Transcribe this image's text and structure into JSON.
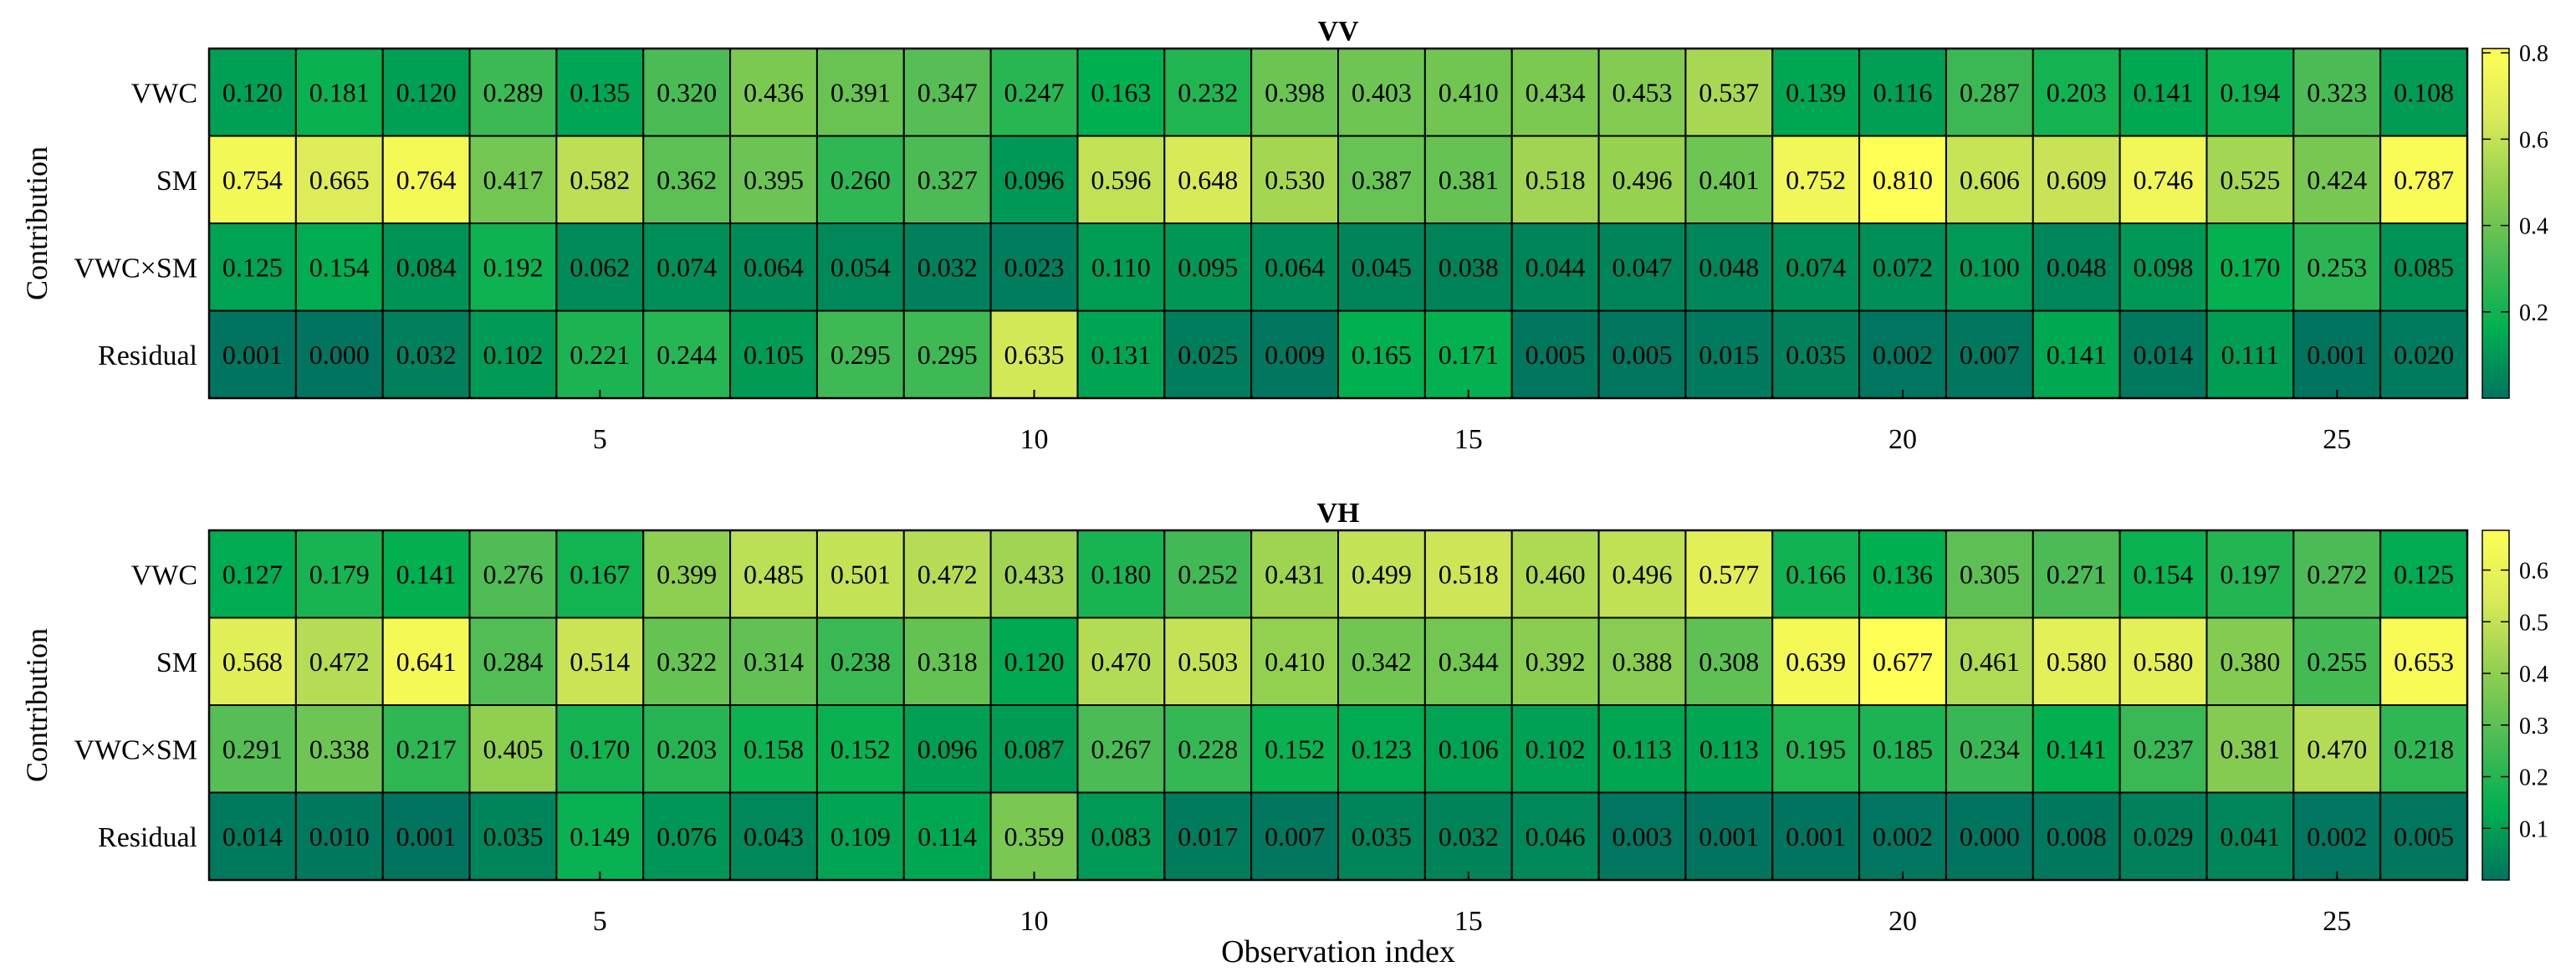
{
  "chart_data": [
    {
      "type": "heatmap",
      "title": "VV",
      "xlabel": "",
      "ylabel": "Contribution",
      "rows": [
        "VWC",
        "SM",
        "VWC×SM",
        "Residual"
      ],
      "x": [
        1,
        2,
        3,
        4,
        5,
        6,
        7,
        8,
        9,
        10,
        11,
        12,
        13,
        14,
        15,
        16,
        17,
        18,
        19,
        20,
        21,
        22,
        23,
        24,
        25,
        26
      ],
      "xticks": [
        "5",
        "10",
        "15",
        "20",
        "25"
      ],
      "values": [
        [
          "0.120",
          "0.181",
          "0.120",
          "0.289",
          "0.135",
          "0.320",
          "0.436",
          "0.391",
          "0.347",
          "0.247",
          "0.163",
          "0.232",
          "0.398",
          "0.403",
          "0.410",
          "0.434",
          "0.453",
          "0.537",
          "0.139",
          "0.116",
          "0.287",
          "0.203",
          "0.141",
          "0.194",
          "0.323",
          "0.108"
        ],
        [
          "0.754",
          "0.665",
          "0.764",
          "0.417",
          "0.582",
          "0.362",
          "0.395",
          "0.260",
          "0.327",
          "0.096",
          "0.596",
          "0.648",
          "0.530",
          "0.387",
          "0.381",
          "0.518",
          "0.496",
          "0.401",
          "0.752",
          "0.810",
          "0.606",
          "0.609",
          "0.746",
          "0.525",
          "0.424",
          "0.787"
        ],
        [
          "0.125",
          "0.154",
          "0.084",
          "0.192",
          "0.062",
          "0.074",
          "0.064",
          "0.054",
          "0.032",
          "0.023",
          "0.110",
          "0.095",
          "0.064",
          "0.045",
          "0.038",
          "0.044",
          "0.047",
          "0.048",
          "0.074",
          "0.072",
          "0.100",
          "0.048",
          "0.098",
          "0.170",
          "0.253",
          "0.085"
        ],
        [
          "0.001",
          "0.000",
          "0.032",
          "0.102",
          "0.221",
          "0.244",
          "0.105",
          "0.295",
          "0.295",
          "0.635",
          "0.131",
          "0.025",
          "0.009",
          "0.165",
          "0.171",
          "0.005",
          "0.005",
          "0.015",
          "0.035",
          "0.002",
          "0.007",
          "0.141",
          "0.014",
          "0.111",
          "0.001",
          "0.020"
        ]
      ],
      "colorbar": {
        "range": [
          0.0,
          0.81
        ],
        "ticks": [
          "0.2",
          "0.4",
          "0.6",
          "0.8"
        ]
      }
    },
    {
      "type": "heatmap",
      "title": "VH",
      "xlabel": "Observation index",
      "ylabel": "Contribution",
      "rows": [
        "VWC",
        "SM",
        "VWC×SM",
        "Residual"
      ],
      "x": [
        1,
        2,
        3,
        4,
        5,
        6,
        7,
        8,
        9,
        10,
        11,
        12,
        13,
        14,
        15,
        16,
        17,
        18,
        19,
        20,
        21,
        22,
        23,
        24,
        25,
        26
      ],
      "xticks": [
        "5",
        "10",
        "15",
        "20",
        "25"
      ],
      "values": [
        [
          "0.127",
          "0.179",
          "0.141",
          "0.276",
          "0.167",
          "0.399",
          "0.485",
          "0.501",
          "0.472",
          "0.433",
          "0.180",
          "0.252",
          "0.431",
          "0.499",
          "0.518",
          "0.460",
          "0.496",
          "0.577",
          "0.166",
          "0.136",
          "0.305",
          "0.271",
          "0.154",
          "0.197",
          "0.272",
          "0.125"
        ],
        [
          "0.568",
          "0.472",
          "0.641",
          "0.284",
          "0.514",
          "0.322",
          "0.314",
          "0.238",
          "0.318",
          "0.120",
          "0.470",
          "0.503",
          "0.410",
          "0.342",
          "0.344",
          "0.392",
          "0.388",
          "0.308",
          "0.639",
          "0.677",
          "0.461",
          "0.580",
          "0.580",
          "0.380",
          "0.255",
          "0.653"
        ],
        [
          "0.291",
          "0.338",
          "0.217",
          "0.405",
          "0.170",
          "0.203",
          "0.158",
          "0.152",
          "0.096",
          "0.087",
          "0.267",
          "0.228",
          "0.152",
          "0.123",
          "0.106",
          "0.102",
          "0.113",
          "0.113",
          "0.195",
          "0.185",
          "0.234",
          "0.141",
          "0.237",
          "0.381",
          "0.470",
          "0.218"
        ],
        [
          "0.014",
          "0.010",
          "0.001",
          "0.035",
          "0.149",
          "0.076",
          "0.043",
          "0.109",
          "0.114",
          "0.359",
          "0.083",
          "0.017",
          "0.007",
          "0.035",
          "0.032",
          "0.046",
          "0.003",
          "0.001",
          "0.001",
          "0.002",
          "0.000",
          "0.008",
          "0.029",
          "0.041",
          "0.002",
          "0.005"
        ]
      ],
      "colorbar": {
        "range": [
          0.0,
          0.677
        ],
        "ticks": [
          "0.1",
          "0.2",
          "0.3",
          "0.4",
          "0.5",
          "0.6"
        ]
      }
    }
  ],
  "colormap": [
    "#00745f",
    "#00b050",
    "#4cbb55",
    "#92cf50",
    "#d9ea58",
    "#ffff55"
  ]
}
